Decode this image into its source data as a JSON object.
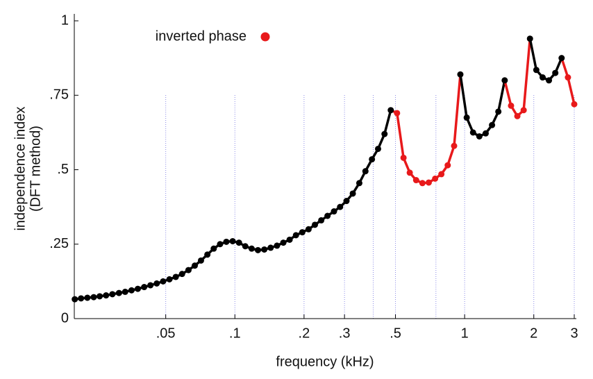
{
  "chart_data": {
    "type": "line",
    "xlabel": "frequency (kHz)",
    "ylabel": [
      "independence index",
      "(DFT method)"
    ],
    "legend_label": "inverted phase",
    "color": "#000000",
    "inverted_color": "#e8191b",
    "log_x": true,
    "xlim": [
      0.02,
      3
    ],
    "ylim": [
      0,
      1
    ],
    "xticks": [
      {
        "value": 0.05,
        "label": ".05"
      },
      {
        "value": 0.1,
        "label": ".1"
      },
      {
        "value": 0.2,
        "label": ".2"
      },
      {
        "value": 0.3,
        "label": ".3"
      },
      {
        "value": 0.5,
        "label": ".5"
      },
      1,
      2,
      3
    ],
    "xgrid": [
      0.05,
      0.1,
      0.2,
      0.3,
      0.4,
      0.5,
      0.75,
      1,
      2,
      3
    ],
    "yticks": [
      0,
      {
        "value": 0.25,
        "label": ".25"
      },
      {
        "value": 0.5,
        "label": ".5"
      },
      {
        "value": 0.75,
        "label": ".75"
      },
      1
    ],
    "x": [
      0.0201,
      0.0214,
      0.0228,
      0.0243,
      0.0258,
      0.0275,
      0.0293,
      0.0313,
      0.0333,
      0.0355,
      0.0378,
      0.0403,
      0.0429,
      0.0457,
      0.0487,
      0.0519,
      0.0553,
      0.0589,
      0.0628,
      0.0669,
      0.0712,
      0.0759,
      0.0809,
      0.0862,
      0.0918,
      0.0978,
      0.1042,
      0.111,
      0.1183,
      0.126,
      0.1343,
      0.1431,
      0.1525,
      0.1625,
      0.1731,
      0.1844,
      0.1965,
      0.2093,
      0.223,
      0.2376,
      0.253,
      0.27,
      0.287,
      0.306,
      0.326,
      0.348,
      0.37,
      0.395,
      0.42,
      0.448,
      0.477,
      0.508,
      0.542,
      0.577,
      0.615,
      0.655,
      0.698,
      0.744,
      0.792,
      0.844,
      0.9,
      0.958,
      1.021,
      1.088,
      1.159,
      1.235,
      1.316,
      1.402,
      1.494,
      1.592,
      1.696,
      1.807,
      1.925,
      2.051,
      2.185,
      2.328,
      2.481,
      2.643,
      2.816,
      3.0
    ],
    "values": [
      0.065,
      0.068,
      0.07,
      0.072,
      0.075,
      0.078,
      0.082,
      0.086,
      0.09,
      0.095,
      0.1,
      0.106,
      0.112,
      0.118,
      0.125,
      0.132,
      0.14,
      0.15,
      0.163,
      0.178,
      0.195,
      0.215,
      0.235,
      0.25,
      0.258,
      0.26,
      0.255,
      0.243,
      0.235,
      0.23,
      0.232,
      0.238,
      0.245,
      0.255,
      0.265,
      0.28,
      0.29,
      0.3,
      0.315,
      0.33,
      0.345,
      0.36,
      0.375,
      0.395,
      0.42,
      0.455,
      0.495,
      0.535,
      0.57,
      0.62,
      0.7,
      0.69,
      0.54,
      0.49,
      0.465,
      0.455,
      0.457,
      0.47,
      0.485,
      0.515,
      0.58,
      0.82,
      0.675,
      0.625,
      0.612,
      0.622,
      0.65,
      0.695,
      0.8,
      0.715,
      0.68,
      0.7,
      0.94,
      0.835,
      0.81,
      0.8,
      0.825,
      0.875,
      0.81,
      0.72
    ],
    "inverted": [
      false,
      false,
      false,
      false,
      false,
      false,
      false,
      false,
      false,
      false,
      false,
      false,
      false,
      false,
      false,
      false,
      false,
      false,
      false,
      false,
      false,
      false,
      false,
      false,
      false,
      false,
      false,
      false,
      false,
      false,
      false,
      false,
      false,
      false,
      false,
      false,
      false,
      false,
      false,
      false,
      false,
      false,
      false,
      false,
      false,
      false,
      false,
      false,
      false,
      false,
      false,
      true,
      true,
      true,
      true,
      true,
      true,
      true,
      true,
      true,
      true,
      false,
      false,
      false,
      false,
      false,
      false,
      false,
      false,
      true,
      true,
      true,
      false,
      false,
      false,
      false,
      false,
      false,
      true,
      true
    ]
  }
}
